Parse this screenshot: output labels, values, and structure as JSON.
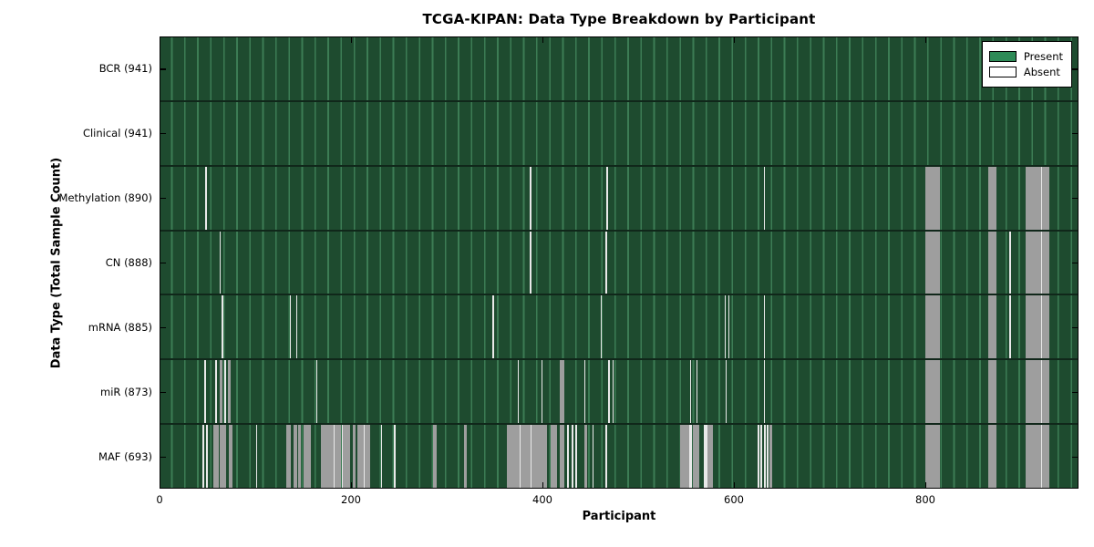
{
  "chart_data": {
    "type": "heatmap",
    "title": "TCGA-KIPAN: Data Type Breakdown by Participant",
    "xlabel": "Participant",
    "ylabel": "Data Type (Total Sample Count)",
    "n_participants": 941,
    "xlim": [
      0,
      960
    ],
    "x_tick_labels": [
      "0",
      "200",
      "400",
      "600",
      "800"
    ],
    "x_tick_values": [
      0,
      200,
      400,
      600,
      800
    ],
    "grid": true,
    "legend_position": "upper right",
    "legend": [
      {
        "label": "Present",
        "color": "#2e8b57"
      },
      {
        "label": "Absent",
        "color": "#ffffff"
      }
    ],
    "colors": {
      "present_bg": "#1e4b2f",
      "grid_line": "#3c7c54",
      "absent_run": "#9e9e9e",
      "absent_single": "#e9e9e9",
      "row_divider": "#10271a",
      "frame": "#000000"
    },
    "rows": [
      {
        "data_type": "BCR",
        "total": 941,
        "label": "BCR (941)",
        "absent_ranges": []
      },
      {
        "data_type": "Clinical",
        "total": 941,
        "label": "Clinical (941)",
        "absent_ranges": []
      },
      {
        "data_type": "Methylation",
        "total": 890,
        "label": "Methylation (890)",
        "absent_ranges": [
          [
            48,
            49
          ],
          [
            387,
            388
          ],
          [
            467,
            468
          ],
          [
            631,
            632
          ],
          [
            800,
            815
          ],
          [
            866,
            874
          ],
          [
            905,
            921
          ],
          [
            921,
            922
          ],
          [
            922,
            930
          ]
        ]
      },
      {
        "data_type": "CN",
        "total": 888,
        "label": "CN (888)",
        "absent_ranges": [
          [
            63,
            64
          ],
          [
            387,
            388
          ],
          [
            466,
            467
          ],
          [
            800,
            815
          ],
          [
            866,
            874
          ],
          [
            888,
            889
          ],
          [
            905,
            921
          ],
          [
            921,
            922
          ],
          [
            922,
            930
          ]
        ]
      },
      {
        "data_type": "mRNA",
        "total": 885,
        "label": "mRNA (885)",
        "absent_ranges": [
          [
            65,
            66
          ],
          [
            136,
            137
          ],
          [
            143,
            144
          ],
          [
            348,
            349
          ],
          [
            461,
            462
          ],
          [
            590,
            591
          ],
          [
            594,
            595
          ],
          [
            631,
            632
          ],
          [
            800,
            815
          ],
          [
            866,
            874
          ],
          [
            888,
            889
          ],
          [
            905,
            921
          ],
          [
            921,
            922
          ],
          [
            922,
            930
          ]
        ]
      },
      {
        "data_type": "miR",
        "total": 873,
        "label": "miR (873)",
        "absent_ranges": [
          [
            47,
            48
          ],
          [
            58,
            60
          ],
          [
            63,
            66
          ],
          [
            68,
            69
          ],
          [
            71,
            74
          ],
          [
            164,
            165
          ],
          [
            374,
            375
          ],
          [
            399,
            400
          ],
          [
            418,
            423
          ],
          [
            444,
            445
          ],
          [
            469,
            470
          ],
          [
            473,
            474
          ],
          [
            554,
            555
          ],
          [
            561,
            562
          ],
          [
            591,
            592
          ],
          [
            631,
            632
          ],
          [
            800,
            815
          ],
          [
            866,
            874
          ],
          [
            905,
            921
          ],
          [
            921,
            922
          ],
          [
            922,
            930
          ]
        ]
      },
      {
        "data_type": "MAF",
        "total": 693,
        "label": "MAF (693)",
        "absent_ranges": [
          [
            45,
            46
          ],
          [
            49,
            50
          ],
          [
            56,
            62
          ],
          [
            63,
            70
          ],
          [
            72,
            76
          ],
          [
            101,
            102
          ],
          [
            132,
            137
          ],
          [
            140,
            144
          ],
          [
            145,
            148
          ],
          [
            150,
            158
          ],
          [
            169,
            182
          ],
          [
            182,
            183
          ],
          [
            183,
            190
          ],
          [
            190,
            191
          ],
          [
            191,
            199
          ],
          [
            202,
            205
          ],
          [
            207,
            213
          ],
          [
            213,
            214
          ],
          [
            214,
            220
          ],
          [
            231,
            232
          ],
          [
            245,
            246
          ],
          [
            286,
            290
          ],
          [
            318,
            321
          ],
          [
            363,
            376
          ],
          [
            376,
            377
          ],
          [
            377,
            388
          ],
          [
            388,
            389
          ],
          [
            389,
            405
          ],
          [
            409,
            415
          ],
          [
            418,
            423
          ],
          [
            426,
            428
          ],
          [
            430,
            432
          ],
          [
            434,
            436
          ],
          [
            444,
            447
          ],
          [
            452,
            453
          ],
          [
            466,
            467
          ],
          [
            544,
            553
          ],
          [
            553,
            554
          ],
          [
            554,
            556
          ],
          [
            557,
            564
          ],
          [
            569,
            571
          ],
          [
            571,
            572
          ],
          [
            572,
            578
          ],
          [
            625,
            627
          ],
          [
            628,
            630
          ],
          [
            631,
            633
          ],
          [
            634,
            636
          ],
          [
            637,
            640
          ],
          [
            800,
            815
          ],
          [
            866,
            874
          ],
          [
            905,
            921
          ],
          [
            921,
            922
          ],
          [
            922,
            930
          ]
        ]
      }
    ]
  }
}
